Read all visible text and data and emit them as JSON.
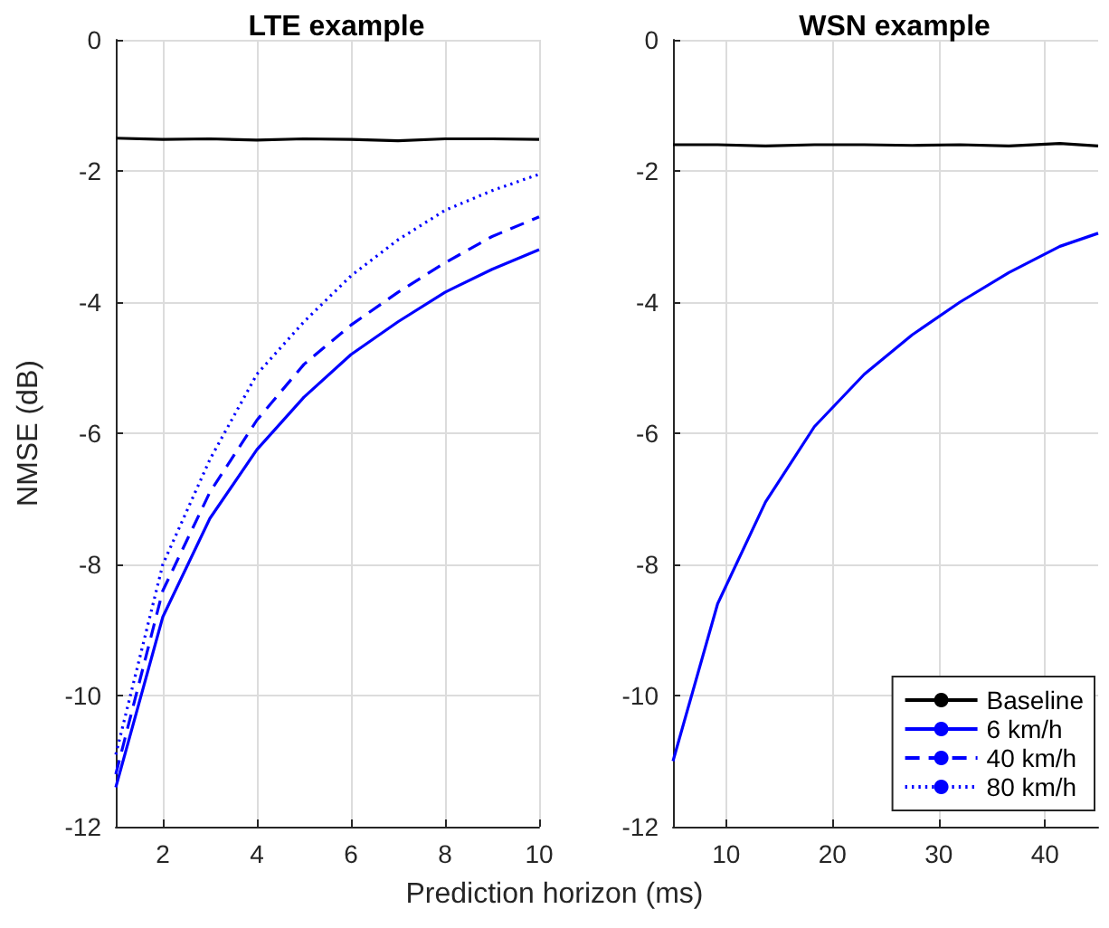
{
  "chart_data": [
    {
      "type": "line",
      "title": "LTE example",
      "xlabel": "Prediction horizon (ms)",
      "ylabel": "NMSE (dB)",
      "x": [
        1,
        2,
        3,
        4,
        5,
        6,
        7,
        8,
        9,
        10
      ],
      "xlim": [
        1,
        10
      ],
      "xticks": [
        2,
        4,
        6,
        8,
        10
      ],
      "ylim": [
        -12,
        0
      ],
      "yticks": [
        -12,
        -10,
        -8,
        -6,
        -4,
        -2,
        0
      ],
      "grid": true,
      "marker": "none",
      "legend": "bottom right",
      "series": [
        {
          "name": "Baseline",
          "color": "#000000",
          "line_style": "solid",
          "values": [
            -1.5,
            -1.52,
            -1.51,
            -1.53,
            -1.51,
            -1.52,
            -1.54,
            -1.51,
            -1.51,
            -1.52
          ]
        },
        {
          "name": "6 km/h",
          "color": "#0000ff",
          "line_style": "solid",
          "values": [
            -11.4,
            -8.8,
            -7.3,
            -6.25,
            -5.45,
            -4.8,
            -4.3,
            -3.85,
            -3.5,
            -3.2
          ]
        },
        {
          "name": "40 km/h",
          "color": "#0000ff",
          "line_style": "dashed",
          "values": [
            -11.2,
            -8.4,
            -6.9,
            -5.8,
            -4.95,
            -4.35,
            -3.85,
            -3.4,
            -3.0,
            -2.7
          ]
        },
        {
          "name": "80 km/h",
          "color": "#0000ff",
          "line_style": "dotted",
          "values": [
            -10.9,
            -8.0,
            -6.4,
            -5.1,
            -4.3,
            -3.6,
            -3.05,
            -2.6,
            -2.3,
            -2.05
          ]
        }
      ]
    },
    {
      "type": "line",
      "title": "WSN example",
      "x": [
        5,
        9.2,
        13.7,
        18.3,
        23,
        27.5,
        32,
        36.6,
        41.4,
        45
      ],
      "xlim": [
        5,
        45
      ],
      "xticks": [
        10,
        20,
        30,
        40
      ],
      "ylim": [
        -12,
        0
      ],
      "yticks": [
        -12,
        -10,
        -8,
        -6,
        -4,
        -2,
        0
      ],
      "grid": true,
      "marker": "none",
      "series": [
        {
          "color": "#000000",
          "line_style": "solid",
          "values": [
            -1.6,
            -1.6,
            -1.62,
            -1.6,
            -1.6,
            -1.61,
            -1.6,
            -1.62,
            -1.58,
            -1.62
          ]
        },
        {
          "color": "#0000ff",
          "line_style": "solid",
          "values": [
            -11.0,
            -8.6,
            -7.05,
            -5.9,
            -5.1,
            -4.5,
            -4.0,
            -3.55,
            -3.15,
            -2.95
          ]
        }
      ]
    }
  ]
}
